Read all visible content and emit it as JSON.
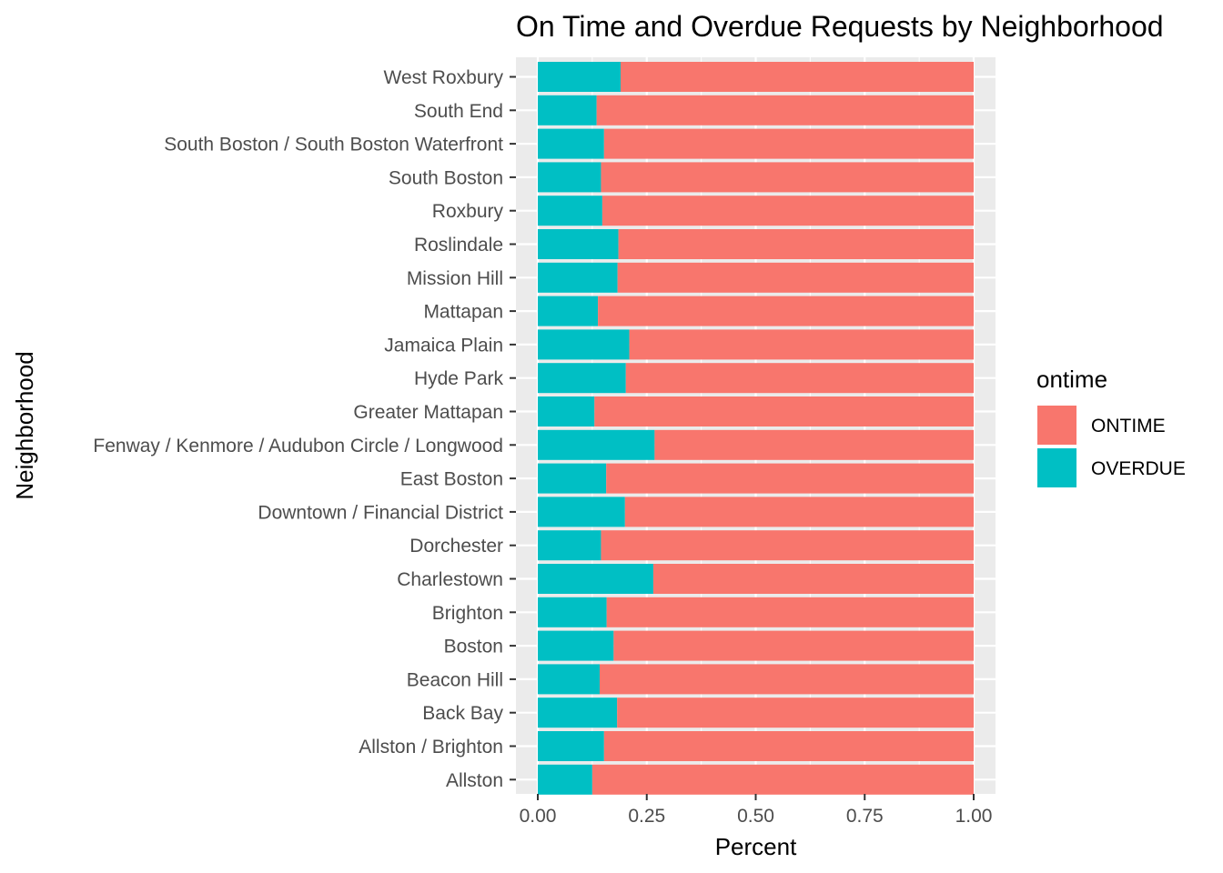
{
  "chart_data": {
    "type": "bar",
    "orientation": "horizontal",
    "stacked": true,
    "title": "On Time and Overdue Requests by Neighborhood",
    "xlabel": "Percent",
    "ylabel": "Neighborhood",
    "xlim": [
      0,
      1
    ],
    "x_ticks": [
      "0.00",
      "0.25",
      "0.50",
      "0.75",
      "1.00"
    ],
    "x_tick_values": [
      0,
      0.25,
      0.5,
      0.75,
      1.0
    ],
    "grid": true,
    "legend": {
      "title": "ontime",
      "placement": "right",
      "entries": [
        "ONTIME",
        "OVERDUE"
      ]
    },
    "colors": {
      "ONTIME": "#F8766D",
      "OVERDUE": "#00BFC4",
      "panel": "#EBEBEB",
      "grid": "#FFFFFF"
    },
    "categories": [
      "West Roxbury",
      "South End",
      "South Boston / South Boston Waterfront",
      "South Boston",
      "Roxbury",
      "Roslindale",
      "Mission Hill",
      "Mattapan",
      "Jamaica Plain",
      "Hyde Park",
      "Greater Mattapan",
      "Fenway / Kenmore / Audubon Circle / Longwood",
      "East Boston",
      "Downtown / Financial District",
      "Dorchester",
      "Charlestown",
      "Brighton",
      "Boston",
      "Beacon Hill",
      "Back Bay",
      "Allston / Brighton",
      "Allston"
    ],
    "series": [
      {
        "name": "OVERDUE",
        "values": [
          0.19,
          0.135,
          0.152,
          0.145,
          0.148,
          0.185,
          0.183,
          0.138,
          0.21,
          0.202,
          0.13,
          0.268,
          0.157,
          0.2,
          0.145,
          0.265,
          0.158,
          0.174,
          0.142,
          0.182,
          0.152,
          0.125
        ]
      },
      {
        "name": "ONTIME",
        "values": [
          0.81,
          0.865,
          0.848,
          0.855,
          0.852,
          0.815,
          0.817,
          0.862,
          0.79,
          0.798,
          0.87,
          0.732,
          0.843,
          0.8,
          0.855,
          0.735,
          0.842,
          0.826,
          0.858,
          0.818,
          0.848,
          0.875
        ]
      }
    ]
  }
}
